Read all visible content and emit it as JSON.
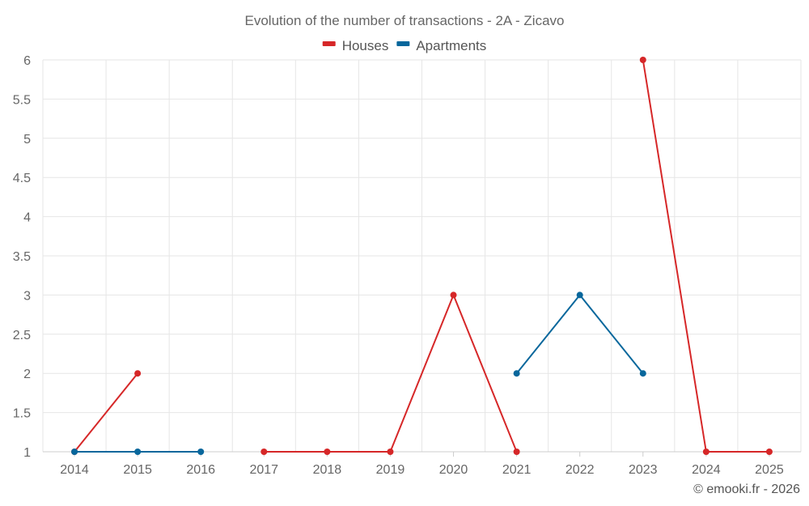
{
  "chart_data": {
    "type": "line",
    "title": "Evolution of the number of transactions - 2A - Zicavo",
    "xlabel": "",
    "ylabel": "",
    "categories": [
      "2014",
      "2015",
      "2016",
      "2017",
      "2018",
      "2019",
      "2020",
      "2021",
      "2022",
      "2023",
      "2024",
      "2025"
    ],
    "y_ticks": [
      "1",
      "1.5",
      "2",
      "2.5",
      "3",
      "3.5",
      "4",
      "4.5",
      "5",
      "5.5",
      "6"
    ],
    "ylim": [
      1,
      6
    ],
    "grid": true,
    "legend_position": "top-center",
    "series": [
      {
        "name": "Houses",
        "color": "#d62728",
        "values": [
          1,
          2,
          null,
          1,
          1,
          1,
          3,
          1,
          null,
          6,
          1,
          1
        ]
      },
      {
        "name": "Apartments",
        "color": "#08679c",
        "values": [
          1,
          1,
          1,
          null,
          null,
          null,
          null,
          2,
          3,
          2,
          null,
          null
        ]
      }
    ]
  },
  "credit": "© emooki.fr - 2026"
}
